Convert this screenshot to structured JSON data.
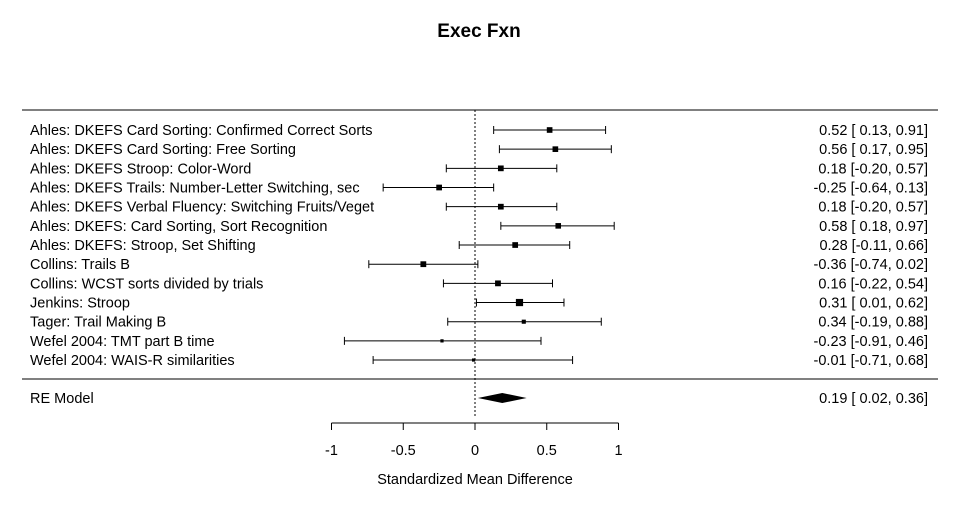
{
  "chart_data": {
    "type": "forest",
    "title": "Exec Fxn",
    "xlabel": "Standardized Mean Difference",
    "xlim": [
      -1,
      1
    ],
    "xticks": [
      "-1",
      "-0.5",
      "0",
      "0.5",
      "1"
    ],
    "reference_line": 0,
    "studies": [
      {
        "label": "Ahles: DKEFS Card Sorting: Confirmed Correct Sorts",
        "estimate": 0.52,
        "lower": 0.13,
        "upper": 0.91,
        "text": "0.52 [ 0.13, 0.91]"
      },
      {
        "label": "Ahles: DKEFS Card Sorting: Free Sorting",
        "estimate": 0.56,
        "lower": 0.17,
        "upper": 0.95,
        "text": "0.56 [ 0.17, 0.95]"
      },
      {
        "label": "Ahles: DKEFS Stroop: Color-Word",
        "estimate": 0.18,
        "lower": -0.2,
        "upper": 0.57,
        "text": "0.18 [-0.20, 0.57]"
      },
      {
        "label": "Ahles: DKEFS Trails: Number-Letter Switching, sec",
        "estimate": -0.25,
        "lower": -0.64,
        "upper": 0.13,
        "text": "-0.25 [-0.64, 0.13]"
      },
      {
        "label": "Ahles: DKEFS Verbal Fluency: Switching Fruits/Veget",
        "estimate": 0.18,
        "lower": -0.2,
        "upper": 0.57,
        "text": "0.18 [-0.20, 0.57]"
      },
      {
        "label": "Ahles: DKEFS: Card Sorting, Sort Recognition",
        "estimate": 0.58,
        "lower": 0.18,
        "upper": 0.97,
        "text": "0.58 [ 0.18, 0.97]"
      },
      {
        "label": "Ahles: DKEFS: Stroop, Set Shifting",
        "estimate": 0.28,
        "lower": -0.11,
        "upper": 0.66,
        "text": "0.28 [-0.11, 0.66]"
      },
      {
        "label": "Collins: Trails B",
        "estimate": -0.36,
        "lower": -0.74,
        "upper": 0.02,
        "text": "-0.36 [-0.74, 0.02]"
      },
      {
        "label": "Collins: WCST sorts divided by trials",
        "estimate": 0.16,
        "lower": -0.22,
        "upper": 0.54,
        "text": "0.16 [-0.22, 0.54]"
      },
      {
        "label": "Jenkins: Stroop",
        "estimate": 0.31,
        "lower": 0.01,
        "upper": 0.62,
        "text": "0.31 [ 0.01, 0.62]"
      },
      {
        "label": "Tager: Trail Making B",
        "estimate": 0.34,
        "lower": -0.19,
        "upper": 0.88,
        "text": "0.34 [-0.19, 0.88]"
      },
      {
        "label": "Wefel 2004: TMT part B time",
        "estimate": -0.23,
        "lower": -0.91,
        "upper": 0.46,
        "text": "-0.23 [-0.91, 0.46]"
      },
      {
        "label": "Wefel 2004: WAIS-R similarities",
        "estimate": -0.01,
        "lower": -0.71,
        "upper": 0.68,
        "text": "-0.01 [-0.71, 0.68]"
      }
    ],
    "summary": {
      "label": "RE Model",
      "estimate": 0.19,
      "lower": 0.02,
      "upper": 0.36,
      "text": "0.19 [ 0.02, 0.36]"
    }
  }
}
